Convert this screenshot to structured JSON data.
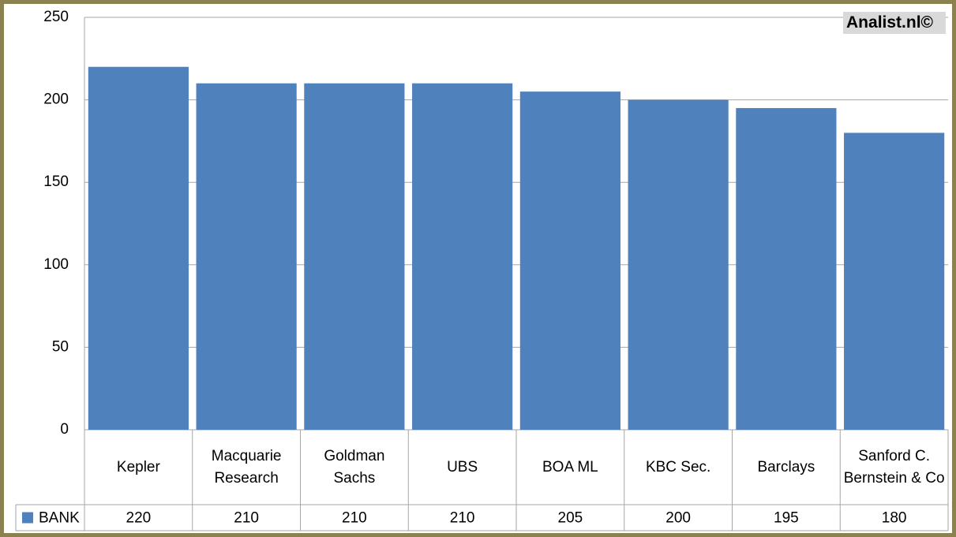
{
  "chart_data": {
    "type": "bar",
    "watermark": "Analist.nl©",
    "categories": [
      "Kepler",
      "Macquarie Research",
      "Goldman Sachs",
      "UBS",
      "BOA ML",
      "KBC Sec.",
      "Barclays",
      "Sanford C. Bernstein & Co"
    ],
    "series": [
      {
        "name": "BANK",
        "color": "#4f81bd",
        "values": [
          220,
          210,
          210,
          210,
          205,
          200,
          195,
          180
        ]
      }
    ],
    "ylim": [
      0,
      250
    ],
    "yticks": [
      0,
      50,
      100,
      150,
      200,
      250
    ],
    "grid": true
  }
}
